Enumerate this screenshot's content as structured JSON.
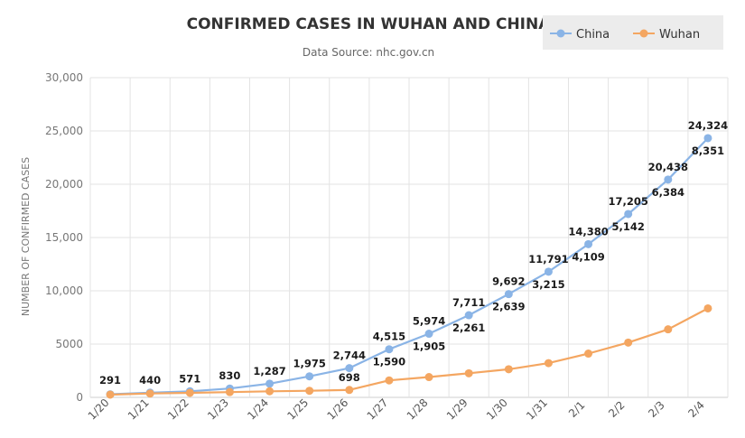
{
  "chart_data": {
    "type": "line",
    "title": "CONFIRMED CASES IN WUHAN AND CHINA",
    "subtitle": "Data Source: nhc.gov.cn",
    "ylabel": "NUMBER OF CONFIRMED CASES",
    "xlabel": "",
    "ylim": [
      0,
      30000
    ],
    "yticks": [
      "0",
      "5000",
      "10,000",
      "15,000",
      "20,000",
      "25,000",
      "30,000"
    ],
    "ytick_values": [
      0,
      5000,
      10000,
      15000,
      20000,
      25000,
      30000
    ],
    "categories": [
      "1/20",
      "1/21",
      "1/22",
      "1/23",
      "1/24",
      "1/25",
      "1/26",
      "1/27",
      "1/28",
      "1/29",
      "1/30",
      "1/31",
      "2/1",
      "2/2",
      "2/3",
      "2/4"
    ],
    "grid": true,
    "legend_position": "top-right",
    "series": [
      {
        "name": "China",
        "color": "#8ab4e6",
        "values": [
          291,
          440,
          571,
          830,
          1287,
          1975,
          2744,
          4515,
          5974,
          7711,
          9692,
          11791,
          14380,
          17205,
          20438,
          24324
        ],
        "labels": [
          "291",
          "440",
          "571",
          "830",
          "1,287",
          "1,975",
          "2,744",
          "4,515",
          "5,974",
          "7,711",
          "9,692",
          "11,791",
          "14,380",
          "17,205",
          "20,438",
          "24,324"
        ]
      },
      {
        "name": "Wuhan",
        "color": "#f4a661",
        "values": [
          258,
          363,
          425,
          495,
          572,
          618,
          698,
          1590,
          1905,
          2261,
          2639,
          3215,
          4109,
          5142,
          6384,
          8351
        ],
        "labels": [
          "",
          "",
          "",
          "",
          "",
          "",
          "698",
          "1,590",
          "1,905",
          "2,261",
          "2,639",
          "3,215",
          "4,109",
          "5,142",
          "6,384",
          "8,351"
        ]
      }
    ]
  }
}
